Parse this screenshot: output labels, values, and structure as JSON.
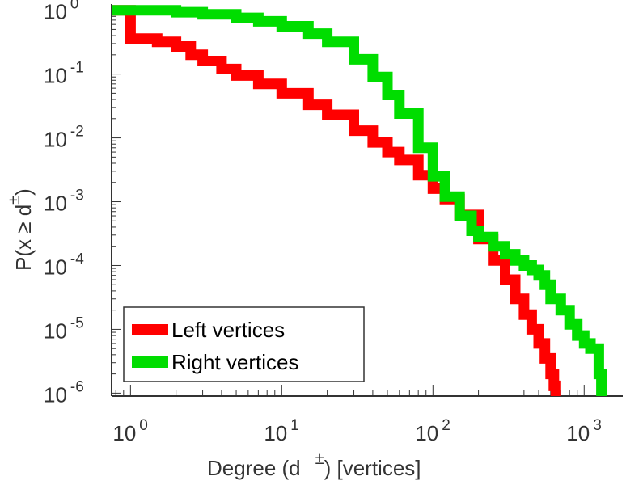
{
  "chart_data": {
    "type": "line",
    "scale": {
      "x": "log",
      "y": "log"
    },
    "xlim": [
      0.75,
      1800
    ],
    "ylim": [
      9e-07,
      1.25
    ],
    "grid": false,
    "xlabel": {
      "text": "Degree (d",
      "sup": "±",
      "suffix": ") [vertices]"
    },
    "ylabel": {
      "text": "P(x ≥ d",
      "sup": "±",
      "suffix": ")"
    },
    "x_ticks": [
      {
        "base": "10",
        "exp": "0",
        "value": 1
      },
      {
        "base": "10",
        "exp": "1",
        "value": 10
      },
      {
        "base": "10",
        "exp": "2",
        "value": 100
      },
      {
        "base": "10",
        "exp": "3",
        "value": 1000
      }
    ],
    "y_ticks": [
      {
        "base": "10",
        "exp": "0",
        "value": 1
      },
      {
        "base": "10",
        "exp": "-1",
        "value": 0.1
      },
      {
        "base": "10",
        "exp": "-2",
        "value": 0.01
      },
      {
        "base": "10",
        "exp": "-3",
        "value": 0.001
      },
      {
        "base": "10",
        "exp": "-4",
        "value": 0.0001
      },
      {
        "base": "10",
        "exp": "-5",
        "value": 1e-05
      },
      {
        "base": "10",
        "exp": "-6",
        "value": 1e-06
      }
    ],
    "legend": {
      "position": "bottom-left"
    },
    "series": [
      {
        "name": "Left vertices",
        "color": "#ff0000",
        "x": [
          0.75,
          1,
          1,
          1.5,
          2,
          2.5,
          3,
          4,
          5,
          7,
          10,
          15,
          20,
          30,
          40,
          50,
          60,
          80,
          100,
          120,
          150,
          200,
          250,
          300,
          350,
          400,
          450,
          500,
          550,
          600,
          630,
          650
        ],
        "y": [
          1,
          1,
          0.36,
          0.32,
          0.27,
          0.2,
          0.16,
          0.12,
          0.095,
          0.07,
          0.05,
          0.033,
          0.023,
          0.013,
          0.0085,
          0.006,
          0.0045,
          0.0026,
          0.0016,
          0.0011,
          0.00062,
          0.00026,
          0.00012,
          6e-05,
          3e-05,
          1.7e-05,
          1e-05,
          6e-06,
          3.5e-06,
          2e-06,
          1.3e-06,
          9e-07
        ]
      },
      {
        "name": "Right vertices",
        "color": "#00dd00",
        "x": [
          0.75,
          1,
          2,
          3,
          5,
          7,
          10,
          15,
          20,
          30,
          40,
          50,
          60,
          80,
          100,
          120,
          150,
          180,
          200,
          250,
          300,
          350,
          400,
          450,
          500,
          550,
          600,
          700,
          800,
          900,
          1000,
          1100,
          1200,
          1250,
          1300
        ],
        "y": [
          1,
          1,
          0.93,
          0.86,
          0.76,
          0.67,
          0.56,
          0.43,
          0.32,
          0.17,
          0.09,
          0.047,
          0.024,
          0.007,
          0.0025,
          0.0012,
          0.0006,
          0.00035,
          0.00028,
          0.0002,
          0.00015,
          0.00012,
          0.0001,
          8.5e-05,
          7e-05,
          5e-05,
          3e-05,
          2e-05,
          1.2e-05,
          8e-06,
          6e-06,
          5e-06,
          5e-06,
          2e-06,
          9e-07
        ]
      }
    ]
  }
}
